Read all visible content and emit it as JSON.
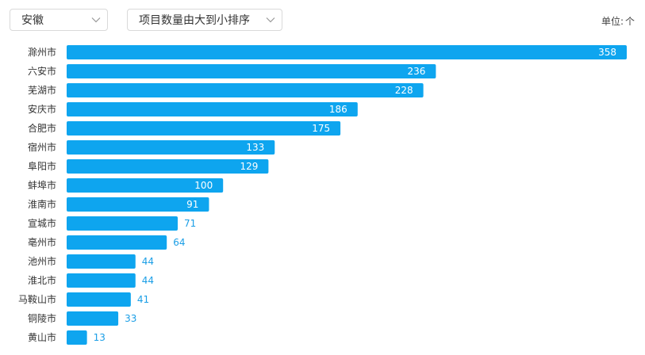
{
  "toolbar": {
    "region_value": "安徽",
    "sort_value": "项目数量由大到小排序",
    "unit_label": "单位:",
    "unit_value": "个"
  },
  "colors": {
    "bar": "#0ea5ef",
    "value_outside": "#1a9ee6"
  },
  "icons": {
    "dropdown": "chevron-down-icon"
  },
  "chart_data": {
    "type": "bar",
    "orientation": "horizontal",
    "categories": [
      "滁州市",
      "六安市",
      "芜湖市",
      "安庆市",
      "合肥市",
      "宿州市",
      "阜阳市",
      "蚌埠市",
      "淮南市",
      "宣城市",
      "亳州市",
      "池州市",
      "淮北市",
      "马鞍山市",
      "铜陵市",
      "黄山市"
    ],
    "values": [
      358,
      236,
      228,
      186,
      175,
      133,
      129,
      100,
      91,
      71,
      64,
      44,
      44,
      41,
      33,
      13
    ],
    "xlim": [
      0,
      358
    ],
    "grid": false,
    "legend": "none"
  }
}
